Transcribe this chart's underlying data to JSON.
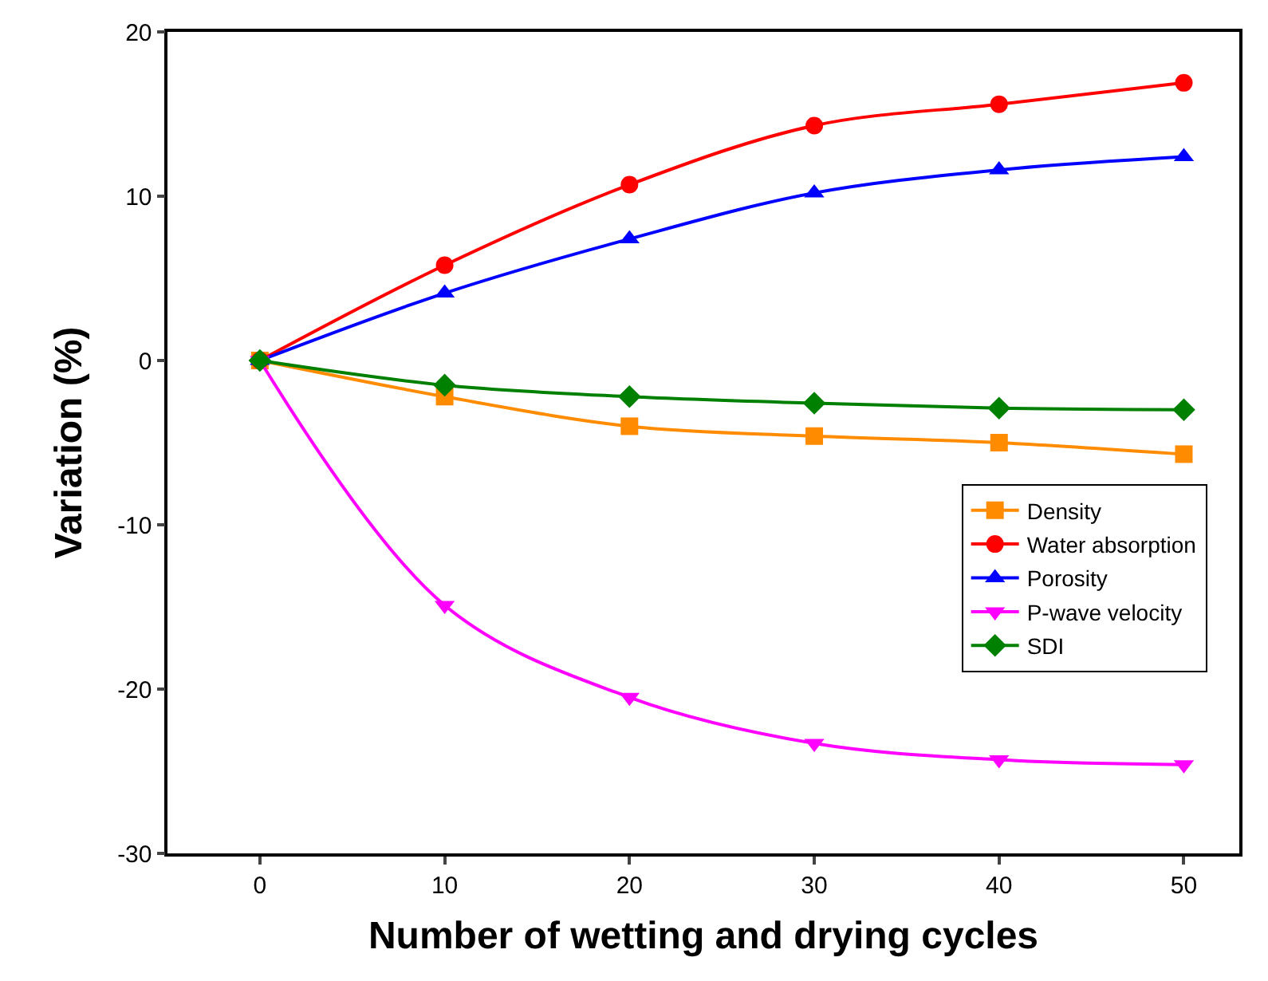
{
  "chart_data": {
    "type": "line",
    "xlabel": "Number of wetting and drying cycles",
    "ylabel": "Variation (%)",
    "x": [
      0,
      10,
      20,
      30,
      40,
      50
    ],
    "xlim": [
      -5,
      53
    ],
    "xticks": [
      0,
      10,
      20,
      30,
      40,
      50
    ],
    "ylim": [
      -30,
      20
    ],
    "yticks": [
      -30,
      -20,
      -10,
      0,
      10,
      20
    ],
    "legend": "bottom right",
    "series": [
      {
        "name": "Density",
        "color": "#ff8c00",
        "marker": "square",
        "values": [
          0,
          -2.2,
          -4.0,
          -4.6,
          -5.0,
          -5.7
        ]
      },
      {
        "name": "Water absorption",
        "color": "#ff0000",
        "marker": "circle",
        "values": [
          0,
          5.8,
          10.7,
          14.3,
          15.6,
          16.9
        ]
      },
      {
        "name": "Porosity",
        "color": "#0000ff",
        "marker": "triangle",
        "values": [
          0,
          4.1,
          7.4,
          10.2,
          11.6,
          12.4
        ]
      },
      {
        "name": "P-wave velocity",
        "color": "#ff00ff",
        "marker": "triangle-down",
        "values": [
          0,
          -14.9,
          -20.5,
          -23.3,
          -24.3,
          -24.6
        ]
      },
      {
        "name": "SDI",
        "color": "#008000",
        "marker": "diamond",
        "values": [
          0,
          -1.5,
          -2.2,
          -2.6,
          -2.9,
          -3.0
        ]
      }
    ]
  }
}
